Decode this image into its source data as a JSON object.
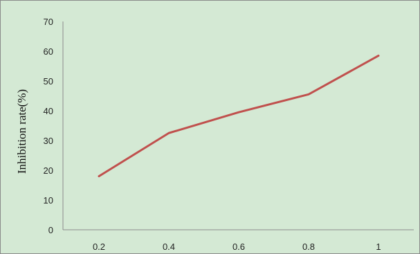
{
  "chart_data": {
    "type": "line",
    "title": "",
    "xlabel": "",
    "ylabel": "Inhibition rate(%)",
    "x": [
      "0.2",
      "0.4",
      "0.6",
      "0.8",
      "1"
    ],
    "series": [
      {
        "values": [
          18,
          32.5,
          39.5,
          45.5,
          58.5
        ]
      }
    ],
    "ylim": [
      0,
      70
    ],
    "yticks": [
      "0",
      "10",
      "20",
      "30",
      "40",
      "50",
      "60",
      "70"
    ],
    "grid": false,
    "legend": "none",
    "colors": {
      "background": "#d4e9d4",
      "line": "#c0504d",
      "axis": "#8c8c8c"
    }
  }
}
